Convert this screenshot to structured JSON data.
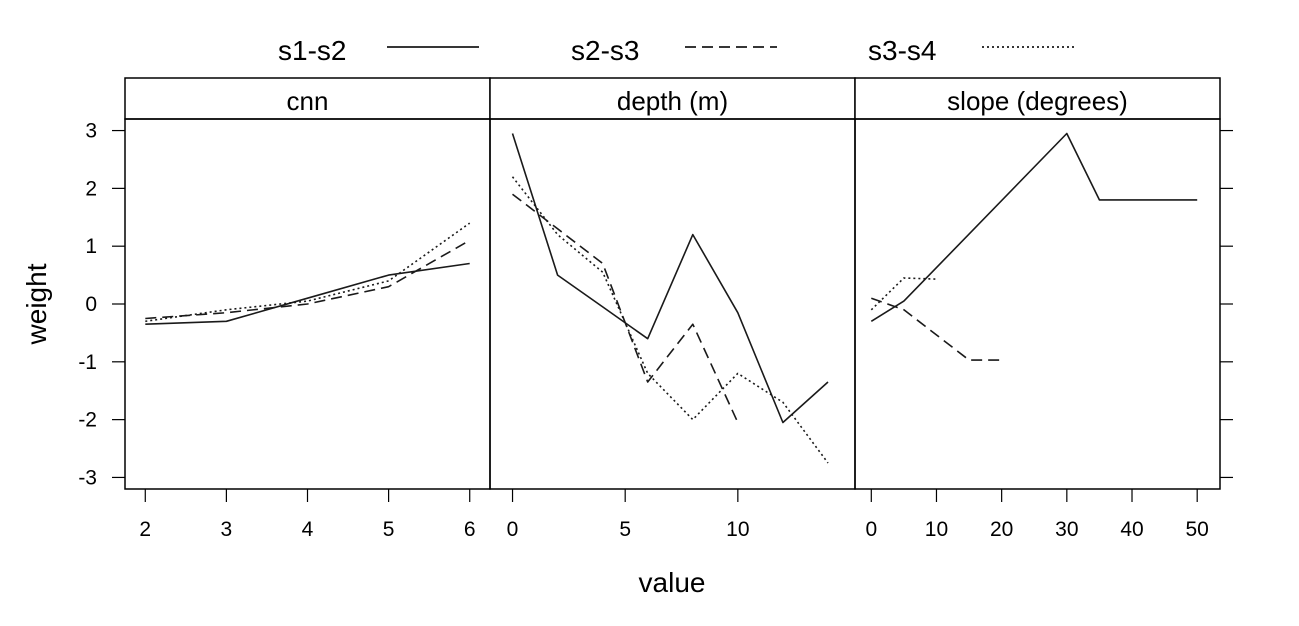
{
  "chart_data": {
    "type": "line",
    "title": "",
    "xlabel": "value",
    "ylabel": "weight",
    "ylim": [
      -3.2,
      3.2
    ],
    "y_ticks": [
      3,
      2,
      1,
      0,
      -1,
      -2,
      -3
    ],
    "legend": {
      "position": "top",
      "entries": [
        {
          "name": "s1-s2",
          "dash": "solid"
        },
        {
          "name": "s2-s3",
          "dash": "dashed"
        },
        {
          "name": "s3-s4",
          "dash": "dotted"
        }
      ]
    },
    "panels": [
      {
        "name": "cnn",
        "xlim": [
          1.75,
          6.25
        ],
        "x_ticks": [
          2,
          3,
          4,
          5,
          6
        ],
        "series": [
          {
            "name": "s1-s2",
            "x": [
              2,
              3,
              4,
              5,
              6
            ],
            "y": [
              -0.35,
              -0.3,
              0.1,
              0.5,
              0.7
            ]
          },
          {
            "name": "s2-s3",
            "x": [
              2,
              3,
              4,
              5,
              6
            ],
            "y": [
              -0.25,
              -0.15,
              0.0,
              0.3,
              1.1
            ]
          },
          {
            "name": "s3-s4",
            "x": [
              2,
              3,
              4,
              5,
              6
            ],
            "y": [
              -0.3,
              -0.1,
              0.05,
              0.4,
              1.4
            ]
          }
        ]
      },
      {
        "name": "depth (m)",
        "xlim": [
          -1,
          15.2
        ],
        "x_ticks": [
          0,
          5,
          10
        ],
        "series": [
          {
            "name": "s1-s2",
            "x": [
              0,
              2,
              4,
              6,
              8,
              10,
              12,
              14
            ],
            "y": [
              2.95,
              0.5,
              -0.05,
              -0.6,
              1.2,
              -0.15,
              -2.05,
              -1.35
            ]
          },
          {
            "name": "s2-s3",
            "x": [
              0,
              2,
              4,
              6,
              8,
              10
            ],
            "y": [
              1.9,
              1.3,
              0.7,
              -1.35,
              -0.35,
              -2.05
            ]
          },
          {
            "name": "s3-s4",
            "x": [
              0,
              2,
              4,
              6,
              8,
              10,
              12,
              14
            ],
            "y": [
              2.2,
              1.2,
              0.55,
              -1.2,
              -2.0,
              -1.2,
              -1.7,
              -2.75
            ]
          }
        ]
      },
      {
        "name": "slope (degrees)",
        "xlim": [
          -2.5,
          53.5
        ],
        "x_ticks": [
          0,
          10,
          20,
          30,
          40,
          50
        ],
        "series": [
          {
            "name": "s1-s2",
            "x": [
              0,
              5,
              30,
              35,
              50
            ],
            "y": [
              -0.3,
              0.05,
              2.95,
              1.8,
              1.8
            ]
          },
          {
            "name": "s2-s3",
            "x": [
              0,
              5,
              15,
              20
            ],
            "y": [
              0.1,
              -0.1,
              -0.97,
              -0.97
            ]
          },
          {
            "name": "s3-s4",
            "x": [
              0,
              5,
              10
            ],
            "y": [
              -0.1,
              0.45,
              0.43
            ]
          }
        ]
      }
    ]
  }
}
